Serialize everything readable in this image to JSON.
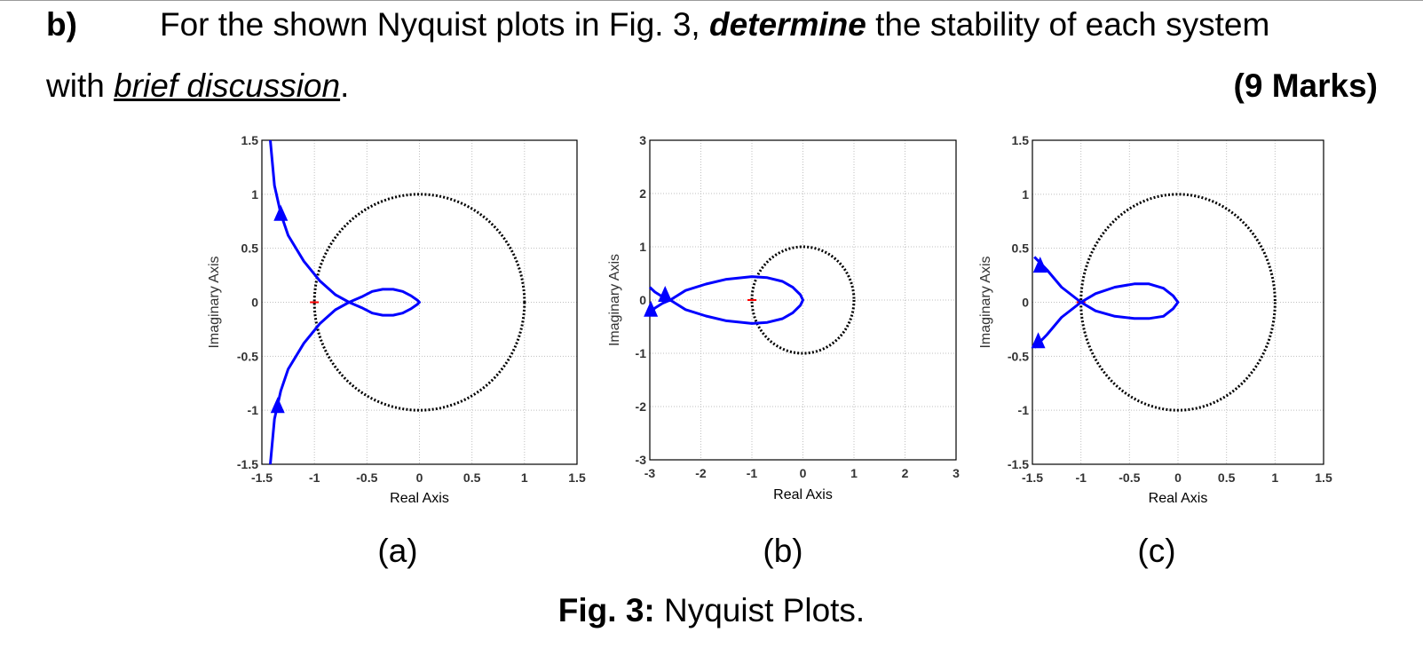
{
  "question": {
    "label": "b)",
    "line1_prefix": "For the shown Nyquist plots in Fig. 3, ",
    "line1_emphasis": "determine",
    "line1_suffix": " the stability of each system",
    "line2_prefix": "with ",
    "line2_underlined": "brief discussion",
    "line2_suffix": ".",
    "marks": "(9 Marks)"
  },
  "figure": {
    "caption_bold": "Fig. 3:",
    "caption_text": " Nyquist Plots."
  },
  "colors": {
    "nyquist": "#0000ff",
    "unit_circle": "#000000",
    "critical_point": "#ff0000",
    "grid": "#bfbfbf"
  },
  "chart_data": [
    {
      "type": "line",
      "panel_label": "(a)",
      "xlabel": "Real Axis",
      "ylabel": "Imaginary Axis",
      "xlim": [
        -1.5,
        1.5
      ],
      "ylim": [
        -1.5,
        1.5
      ],
      "xticks": [
        -1.5,
        -1,
        -0.5,
        0,
        0.5,
        1,
        1.5
      ],
      "yticks": [
        -1.5,
        -1,
        -0.5,
        0,
        0.5,
        1,
        1.5
      ],
      "xtick_labels": [
        "-1.5",
        "-1",
        "-0.5",
        "0",
        "0.5",
        "1",
        "1.5"
      ],
      "ytick_labels": [
        "-1.5",
        "-1",
        "-0.5",
        "0",
        "0.5",
        "1",
        "1.5"
      ],
      "grid": true,
      "unit_circle_radius": 1,
      "critical_point": [
        -1,
        0
      ],
      "series": [
        {
          "x": [
            -1.42,
            -1.38,
            -1.32,
            -1.25,
            -1.1,
            -0.95,
            -0.8,
            -0.67,
            -0.55,
            -0.45,
            -0.35,
            -0.25,
            -0.16,
            -0.08,
            -0.02,
            0,
            -0.02,
            -0.08,
            -0.16,
            -0.25,
            -0.35,
            -0.45,
            -0.55,
            -0.67,
            -0.8,
            -0.95,
            -1.1,
            -1.25,
            -1.32,
            -1.38,
            -1.42
          ],
          "y": [
            1.5,
            1.08,
            0.82,
            0.62,
            0.38,
            0.2,
            0.07,
            0,
            0.05,
            0.1,
            0.12,
            0.12,
            0.1,
            0.06,
            0.02,
            0,
            -0.02,
            -0.06,
            -0.1,
            -0.12,
            -0.12,
            -0.1,
            -0.05,
            0,
            -0.07,
            -0.2,
            -0.38,
            -0.62,
            -0.82,
            -1.08,
            -1.5
          ],
          "arrows": [
            [
              -1.32,
              0.82
            ],
            [
              -1.35,
              -0.96
            ]
          ]
        }
      ]
    },
    {
      "type": "line",
      "panel_label": "(b)",
      "xlabel": "Real Axis",
      "ylabel": "Imaginary Axis",
      "xlim": [
        -3,
        3
      ],
      "ylim": [
        -3,
        3
      ],
      "xticks": [
        -3,
        -2,
        -1,
        0,
        1,
        2,
        3
      ],
      "yticks": [
        -3,
        -2,
        -1,
        0,
        1,
        2,
        3
      ],
      "xtick_labels": [
        "-3",
        "-2",
        "-1",
        "0",
        "1",
        "2",
        "3"
      ],
      "ytick_labels": [
        "-3",
        "-2",
        "-1",
        "0",
        "1",
        "2",
        "3"
      ],
      "grid": true,
      "unit_circle_radius": 1,
      "critical_point": [
        -1,
        0
      ],
      "series": [
        {
          "x": [
            -3,
            -2.9,
            -2.75,
            -2.6,
            -2.3,
            -1.9,
            -1.5,
            -1.0,
            -0.7,
            -0.4,
            -0.2,
            -0.05,
            0,
            -0.05,
            -0.2,
            -0.4,
            -0.7,
            -1.0,
            -1.5,
            -1.9,
            -2.3,
            -2.6,
            -2.75,
            -2.9,
            -3
          ],
          "y": [
            0.24,
            0.15,
            0.06,
            0,
            0.18,
            0.3,
            0.39,
            0.44,
            0.42,
            0.35,
            0.24,
            0.1,
            0,
            -0.1,
            -0.24,
            -0.35,
            -0.42,
            -0.44,
            -0.39,
            -0.3,
            -0.18,
            0,
            -0.06,
            -0.15,
            -0.24
          ],
          "arrows": [
            [
              -2.7,
              0.1
            ],
            [
              -2.98,
              -0.18
            ]
          ]
        }
      ]
    },
    {
      "type": "line",
      "panel_label": "(c)",
      "xlabel": "Real Axis",
      "ylabel": "Imaginary Axis",
      "xlim": [
        -1.5,
        1.5
      ],
      "ylim": [
        -1.5,
        1.5
      ],
      "xticks": [
        -1.5,
        -1,
        -0.5,
        0,
        0.5,
        1,
        1.5
      ],
      "yticks": [
        -1.5,
        -1,
        -0.5,
        0,
        0.5,
        1,
        1.5
      ],
      "xtick_labels": [
        "-1.5",
        "-1",
        "-0.5",
        "0",
        "0.5",
        "1",
        "1.5"
      ],
      "ytick_labels": [
        "-1.5",
        "-1",
        "-0.5",
        "0",
        "0.5",
        "1",
        "1.5"
      ],
      "grid": true,
      "unit_circle_radius": 1,
      "critical_point": [
        -1,
        0
      ],
      "series": [
        {
          "x": [
            -1.48,
            -1.35,
            -1.2,
            -1.0,
            -0.85,
            -0.65,
            -0.45,
            -0.3,
            -0.15,
            -0.05,
            0,
            -0.05,
            -0.15,
            -0.3,
            -0.45,
            -0.65,
            -0.85,
            -1.0,
            -1.2,
            -1.35,
            -1.48
          ],
          "y": [
            0.42,
            0.3,
            0.14,
            0,
            0.08,
            0.14,
            0.17,
            0.17,
            0.13,
            0.06,
            0,
            -0.06,
            -0.13,
            -0.15,
            -0.15,
            -0.13,
            -0.08,
            0,
            -0.14,
            -0.3,
            -0.42
          ],
          "arrows": [
            [
              -1.42,
              0.34
            ],
            [
              -1.44,
              -0.36
            ]
          ]
        }
      ]
    }
  ]
}
